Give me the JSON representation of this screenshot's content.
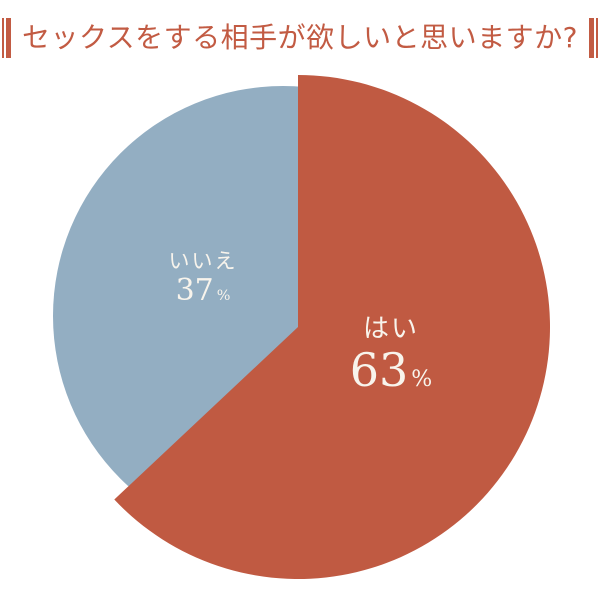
{
  "title": {
    "text": "セックスをする相手が欲しいと思いますか?",
    "color": "#c25b43",
    "bracket_style": "double-vertical-bar"
  },
  "chart_data": {
    "type": "pie",
    "title": "セックスをする相手が欲しいと思いますか?",
    "slices": [
      {
        "label": "はい",
        "value": 63,
        "unit": "%",
        "color": "#c05a42"
      },
      {
        "label": "いいえ",
        "value": 37,
        "unit": "%",
        "color": "#93aec2"
      }
    ],
    "start_angle_deg": 0,
    "direction": "clockwise",
    "legend": "none",
    "data_labels": "inside",
    "labels_color": "#f8f4ec",
    "background_color": "#ffffff"
  }
}
